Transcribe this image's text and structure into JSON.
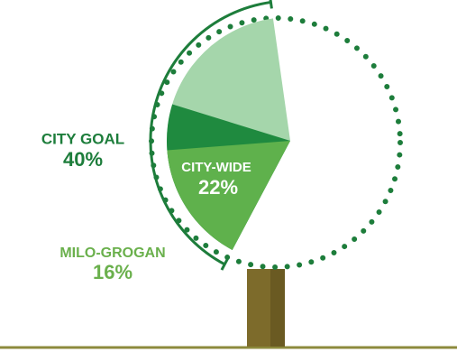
{
  "chart_data": {
    "type": "pie",
    "categories": [
      "CITY GOAL",
      "CITY-WIDE",
      "MILO-GROGAN"
    ],
    "values": [
      40,
      22,
      16
    ],
    "value_labels": [
      "40%",
      "22%",
      "16%"
    ],
    "colors": [
      "#a5d6ab",
      "#1f8a3f",
      "#5fb14c"
    ]
  }
}
